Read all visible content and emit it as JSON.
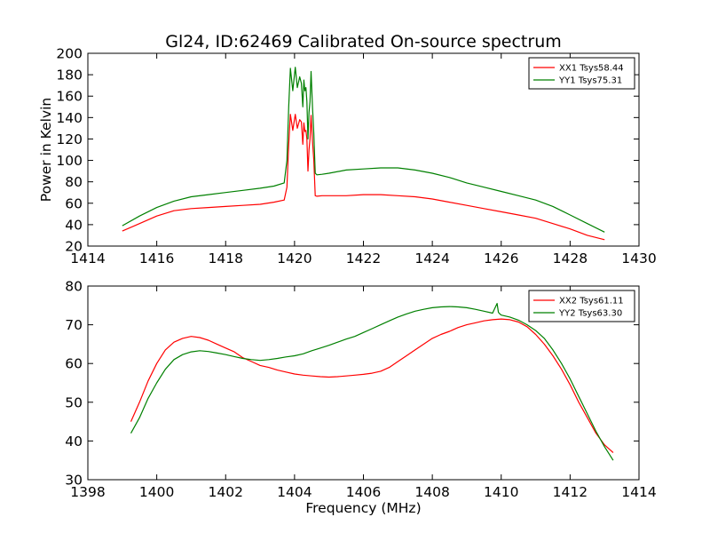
{
  "colors": {
    "xx": "#ff0000",
    "yy": "#008000"
  },
  "chart_data": [
    {
      "type": "line",
      "title": "Gl24, ID:62469 Calibrated On-source spectrum",
      "xlabel": "",
      "ylabel": "Power in Kelvin",
      "xlim": [
        1414,
        1430
      ],
      "ylim": [
        20,
        200
      ],
      "xticks": [
        1414,
        1416,
        1418,
        1420,
        1422,
        1424,
        1426,
        1428,
        1430
      ],
      "yticks": [
        20,
        40,
        60,
        80,
        100,
        120,
        140,
        160,
        180,
        200
      ],
      "grid": false,
      "legend_position": "top-right",
      "series": [
        {
          "name": "XX1 Tsys58.44",
          "color": "#ff0000",
          "x": [
            1415.0,
            1415.5,
            1416.0,
            1416.5,
            1417.0,
            1417.5,
            1418.0,
            1418.5,
            1419.0,
            1419.4,
            1419.7,
            1419.78,
            1419.83,
            1419.88,
            1419.95,
            1420.02,
            1420.08,
            1420.15,
            1420.2,
            1420.24,
            1420.27,
            1420.3,
            1420.33,
            1420.36,
            1420.39,
            1420.42,
            1420.45,
            1420.48,
            1420.52,
            1420.56,
            1420.6,
            1420.65,
            1420.8,
            1421.0,
            1421.5,
            1422.0,
            1422.5,
            1423.0,
            1423.5,
            1424.0,
            1424.5,
            1425.0,
            1425.5,
            1426.0,
            1426.5,
            1427.0,
            1427.5,
            1428.0,
            1428.5,
            1429.0
          ],
          "y": [
            34,
            41,
            48,
            53,
            55,
            56,
            57,
            58,
            59,
            61,
            63,
            75,
            115,
            143,
            128,
            143,
            130,
            138,
            136,
            115,
            135,
            127,
            128,
            120,
            90,
            110,
            120,
            142,
            118,
            100,
            67,
            66.5,
            67,
            67,
            67,
            68,
            68,
            67,
            66,
            64,
            61,
            58,
            55,
            52,
            49,
            46,
            41,
            36,
            30,
            26
          ]
        },
        {
          "name": "YY1 Tsys75.31",
          "color": "#008000",
          "x": [
            1415.0,
            1415.5,
            1416.0,
            1416.5,
            1417.0,
            1417.5,
            1418.0,
            1418.5,
            1419.0,
            1419.4,
            1419.7,
            1419.78,
            1419.83,
            1419.88,
            1419.95,
            1420.02,
            1420.08,
            1420.15,
            1420.2,
            1420.24,
            1420.27,
            1420.3,
            1420.33,
            1420.36,
            1420.39,
            1420.42,
            1420.45,
            1420.48,
            1420.52,
            1420.56,
            1420.6,
            1420.65,
            1420.8,
            1421.0,
            1421.5,
            1422.0,
            1422.5,
            1423.0,
            1423.5,
            1424.0,
            1424.5,
            1425.0,
            1425.5,
            1426.0,
            1426.5,
            1427.0,
            1427.5,
            1428.0,
            1428.5,
            1429.0
          ],
          "y": [
            39,
            48,
            56,
            62,
            66,
            68,
            70,
            72,
            74,
            76,
            79,
            100,
            150,
            186,
            165,
            187,
            168,
            178,
            172,
            150,
            175,
            165,
            168,
            155,
            120,
            145,
            155,
            183,
            150,
            125,
            88,
            86.5,
            87,
            88,
            91,
            92,
            93,
            93,
            91,
            88,
            84,
            79,
            75,
            71,
            67,
            63,
            57,
            49,
            41,
            33
          ]
        }
      ]
    },
    {
      "type": "line",
      "title": "",
      "xlabel": "Frequency (MHz)",
      "ylabel": "",
      "xlim": [
        1398,
        1414
      ],
      "ylim": [
        30,
        80
      ],
      "xticks": [
        1398,
        1400,
        1402,
        1404,
        1406,
        1408,
        1410,
        1412,
        1414
      ],
      "yticks": [
        30,
        40,
        50,
        60,
        70,
        80
      ],
      "grid": false,
      "legend_position": "top-right",
      "series": [
        {
          "name": "XX2 Tsys61.11",
          "color": "#ff0000",
          "x": [
            1399.25,
            1399.5,
            1399.75,
            1400.0,
            1400.25,
            1400.5,
            1400.75,
            1401.0,
            1401.25,
            1401.5,
            1401.75,
            1402.0,
            1402.25,
            1402.5,
            1402.75,
            1403.0,
            1403.25,
            1403.5,
            1403.75,
            1404.0,
            1404.25,
            1404.5,
            1404.75,
            1405.0,
            1405.25,
            1405.5,
            1405.75,
            1406.0,
            1406.25,
            1406.5,
            1406.75,
            1407.0,
            1407.25,
            1407.5,
            1407.75,
            1408.0,
            1408.25,
            1408.5,
            1408.75,
            1409.0,
            1409.25,
            1409.5,
            1409.75,
            1410.0,
            1410.25,
            1410.5,
            1410.75,
            1411.0,
            1411.25,
            1411.5,
            1411.75,
            1412.0,
            1412.25,
            1412.5,
            1412.75,
            1413.0,
            1413.25
          ],
          "y": [
            45,
            50,
            55.5,
            60,
            63.5,
            65.5,
            66.5,
            67,
            66.7,
            66,
            65,
            64,
            63,
            61.5,
            60.5,
            59.5,
            59,
            58.3,
            57.8,
            57.3,
            57,
            56.8,
            56.6,
            56.5,
            56.6,
            56.8,
            57,
            57.2,
            57.5,
            58,
            59,
            60.5,
            62,
            63.5,
            65,
            66.5,
            67.5,
            68.3,
            69.3,
            70,
            70.5,
            71,
            71.3,
            71.5,
            71.3,
            70.7,
            69.5,
            67.5,
            65,
            62,
            58.5,
            54.5,
            50,
            46,
            42,
            39,
            37
          ]
        },
        {
          "name": "YY2 Tsys63.30",
          "color": "#008000",
          "x": [
            1399.25,
            1399.5,
            1399.75,
            1400.0,
            1400.25,
            1400.5,
            1400.75,
            1401.0,
            1401.25,
            1401.5,
            1401.75,
            1402.0,
            1402.25,
            1402.5,
            1402.75,
            1403.0,
            1403.25,
            1403.5,
            1403.75,
            1404.0,
            1404.25,
            1404.5,
            1404.75,
            1405.0,
            1405.25,
            1405.5,
            1405.75,
            1406.0,
            1406.25,
            1406.5,
            1406.75,
            1407.0,
            1407.25,
            1407.5,
            1407.75,
            1408.0,
            1408.25,
            1408.5,
            1408.75,
            1409.0,
            1409.25,
            1409.5,
            1409.75,
            1409.88,
            1409.92,
            1409.96,
            1410.0,
            1410.25,
            1410.5,
            1410.75,
            1411.0,
            1411.25,
            1411.5,
            1411.75,
            1412.0,
            1412.25,
            1412.5,
            1412.75,
            1413.0,
            1413.25
          ],
          "y": [
            42,
            46,
            51,
            55,
            58.5,
            61,
            62.3,
            63,
            63.3,
            63.1,
            62.7,
            62.3,
            61.8,
            61.3,
            61,
            60.8,
            61,
            61.3,
            61.7,
            62,
            62.5,
            63.3,
            64,
            64.7,
            65.5,
            66.3,
            67,
            68,
            69,
            70,
            71,
            72,
            72.8,
            73.5,
            74,
            74.4,
            74.6,
            74.7,
            74.6,
            74.4,
            74,
            73.5,
            73,
            75.5,
            73.2,
            72.8,
            72.5,
            72,
            71.2,
            70,
            68.5,
            66.5,
            63.5,
            60,
            56,
            51.5,
            47,
            42.5,
            38.5,
            35
          ]
        }
      ]
    }
  ]
}
